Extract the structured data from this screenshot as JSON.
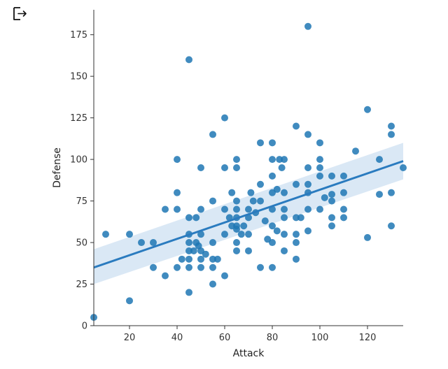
{
  "toolbar": {
    "export_icon": "export-icon"
  },
  "chart_data": {
    "type": "scatter",
    "title": "",
    "xlabel": "Attack",
    "ylabel": "Defense",
    "xlim": [
      5,
      135
    ],
    "ylim": [
      0,
      190
    ],
    "xticks": [
      20,
      40,
      60,
      80,
      100,
      120
    ],
    "yticks": [
      0,
      25,
      50,
      75,
      100,
      125,
      150,
      175
    ],
    "grid": false,
    "legend": "none",
    "colors": {
      "point": "#1f77b4",
      "line": "#2a7bbf",
      "band": "#c6dbef",
      "axis": "#333333"
    },
    "regression": {
      "x": [
        5,
        135
      ],
      "y": [
        35,
        99
      ],
      "ci_lower": [
        25,
        88
      ],
      "ci_upper": [
        46,
        110
      ]
    },
    "points": [
      [
        5,
        5
      ],
      [
        10,
        55
      ],
      [
        20,
        55
      ],
      [
        20,
        15
      ],
      [
        25,
        50
      ],
      [
        30,
        50
      ],
      [
        30,
        35
      ],
      [
        35,
        30
      ],
      [
        35,
        70
      ],
      [
        40,
        100
      ],
      [
        40,
        80
      ],
      [
        40,
        70
      ],
      [
        40,
        35
      ],
      [
        42,
        40
      ],
      [
        45,
        160
      ],
      [
        45,
        65
      ],
      [
        45,
        55
      ],
      [
        45,
        50
      ],
      [
        45,
        45
      ],
      [
        45,
        35
      ],
      [
        45,
        40
      ],
      [
        45,
        20
      ],
      [
        47,
        45
      ],
      [
        48,
        65
      ],
      [
        48,
        50
      ],
      [
        49,
        48
      ],
      [
        50,
        95
      ],
      [
        50,
        70
      ],
      [
        50,
        55
      ],
      [
        50,
        45
      ],
      [
        50,
        40
      ],
      [
        50,
        35
      ],
      [
        52,
        43
      ],
      [
        55,
        115
      ],
      [
        55,
        75
      ],
      [
        55,
        50
      ],
      [
        55,
        40
      ],
      [
        55,
        35
      ],
      [
        55,
        25
      ],
      [
        57,
        40
      ],
      [
        60,
        125
      ],
      [
        60,
        95
      ],
      [
        60,
        70
      ],
      [
        60,
        55
      ],
      [
        60,
        30
      ],
      [
        62,
        65
      ],
      [
        63,
        60
      ],
      [
        63,
        80
      ],
      [
        65,
        100
      ],
      [
        65,
        95
      ],
      [
        65,
        75
      ],
      [
        65,
        70
      ],
      [
        65,
        65
      ],
      [
        65,
        60
      ],
      [
        65,
        58
      ],
      [
        65,
        50
      ],
      [
        65,
        45
      ],
      [
        67,
        55
      ],
      [
        68,
        60
      ],
      [
        70,
        70
      ],
      [
        70,
        65
      ],
      [
        70,
        55
      ],
      [
        70,
        45
      ],
      [
        71,
        80
      ],
      [
        72,
        75
      ],
      [
        73,
        68
      ],
      [
        75,
        110
      ],
      [
        75,
        85
      ],
      [
        75,
        75
      ],
      [
        75,
        35
      ],
      [
        77,
        63
      ],
      [
        78,
        52
      ],
      [
        80,
        110
      ],
      [
        80,
        100
      ],
      [
        80,
        90
      ],
      [
        80,
        80
      ],
      [
        80,
        70
      ],
      [
        80,
        60
      ],
      [
        80,
        50
      ],
      [
        80,
        35
      ],
      [
        82,
        82
      ],
      [
        82,
        57
      ],
      [
        83,
        100
      ],
      [
        84,
        95
      ],
      [
        85,
        100
      ],
      [
        85,
        80
      ],
      [
        85,
        70
      ],
      [
        85,
        65
      ],
      [
        85,
        55
      ],
      [
        85,
        45
      ],
      [
        90,
        120
      ],
      [
        90,
        85
      ],
      [
        90,
        65
      ],
      [
        90,
        55
      ],
      [
        90,
        50
      ],
      [
        90,
        40
      ],
      [
        92,
        65
      ],
      [
        95,
        180
      ],
      [
        95,
        115
      ],
      [
        95,
        95
      ],
      [
        95,
        85
      ],
      [
        95,
        80
      ],
      [
        95,
        70
      ],
      [
        95,
        57
      ],
      [
        100,
        110
      ],
      [
        100,
        100
      ],
      [
        100,
        95
      ],
      [
        100,
        90
      ],
      [
        100,
        70
      ],
      [
        102,
        77
      ],
      [
        105,
        90
      ],
      [
        105,
        79
      ],
      [
        105,
        75
      ],
      [
        105,
        65
      ],
      [
        105,
        60
      ],
      [
        110,
        90
      ],
      [
        110,
        80
      ],
      [
        110,
        70
      ],
      [
        110,
        65
      ],
      [
        115,
        105
      ],
      [
        120,
        130
      ],
      [
        120,
        53
      ],
      [
        125,
        100
      ],
      [
        125,
        79
      ],
      [
        130,
        120
      ],
      [
        130,
        115
      ],
      [
        130,
        80
      ],
      [
        130,
        60
      ],
      [
        135,
        95
      ]
    ]
  }
}
